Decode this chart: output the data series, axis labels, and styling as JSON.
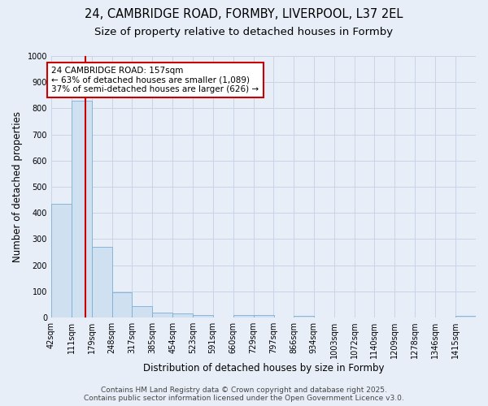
{
  "title_line1": "24, CAMBRIDGE ROAD, FORMBY, LIVERPOOL, L37 2EL",
  "title_line2": "Size of property relative to detached houses in Formby",
  "xlabel": "Distribution of detached houses by size in Formby",
  "ylabel": "Number of detached properties",
  "bar_values": [
    435,
    830,
    270,
    95,
    45,
    20,
    15,
    10,
    0,
    10,
    10,
    0,
    5,
    0,
    0,
    0,
    0,
    0,
    0,
    0,
    5
  ],
  "bin_edges": [
    42,
    111,
    179,
    248,
    317,
    385,
    454,
    523,
    591,
    660,
    729,
    797,
    866,
    934,
    1003,
    1072,
    1140,
    1209,
    1278,
    1346,
    1415
  ],
  "x_tick_labels": [
    "42sqm",
    "111sqm",
    "179sqm",
    "248sqm",
    "317sqm",
    "385sqm",
    "454sqm",
    "523sqm",
    "591sqm",
    "660sqm",
    "729sqm",
    "797sqm",
    "866sqm",
    "934sqm",
    "1003sqm",
    "1072sqm",
    "1140sqm",
    "1209sqm",
    "1278sqm",
    "1346sqm",
    "1415sqm"
  ],
  "bar_color": "#cfe0f0",
  "bar_edgecolor": "#7bafd4",
  "property_line_x": 157,
  "property_line_color": "#cc0000",
  "annotation_text": "24 CAMBRIDGE ROAD: 157sqm\n← 63% of detached houses are smaller (1,089)\n37% of semi-detached houses are larger (626) →",
  "annotation_box_edgecolor": "#cc0000",
  "annotation_box_facecolor": "#ffffff",
  "ylim": [
    0,
    1000
  ],
  "yticks": [
    0,
    100,
    200,
    300,
    400,
    500,
    600,
    700,
    800,
    900,
    1000
  ],
  "bg_color": "#e8eef8",
  "grid_color": "#c8d4e8",
  "footer_line1": "Contains HM Land Registry data © Crown copyright and database right 2025.",
  "footer_line2": "Contains public sector information licensed under the Open Government Licence v3.0.",
  "title_fontsize": 10.5,
  "subtitle_fontsize": 9.5,
  "axis_label_fontsize": 8.5,
  "tick_fontsize": 7,
  "annotation_fontsize": 7.5,
  "footer_fontsize": 6.5
}
